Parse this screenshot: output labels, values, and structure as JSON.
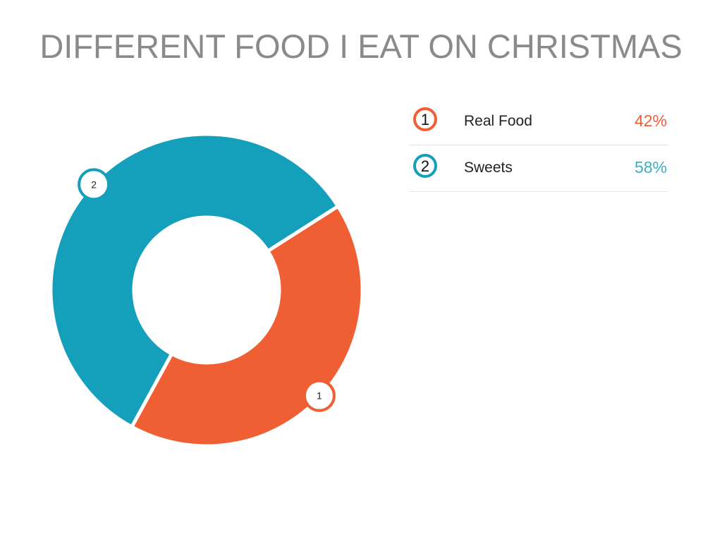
{
  "chart_data": {
    "type": "pie",
    "donut": true,
    "title": "DIFFERENT FOOD I EAT ON CHRISTMAS",
    "categories": [
      "Real Food",
      "Sweets"
    ],
    "values": [
      42,
      58
    ],
    "value_labels": [
      "42%",
      "58%"
    ],
    "markers": [
      "1",
      "2"
    ],
    "colors": [
      "#F05F34",
      "#149FBB"
    ],
    "legend_position": "right"
  }
}
